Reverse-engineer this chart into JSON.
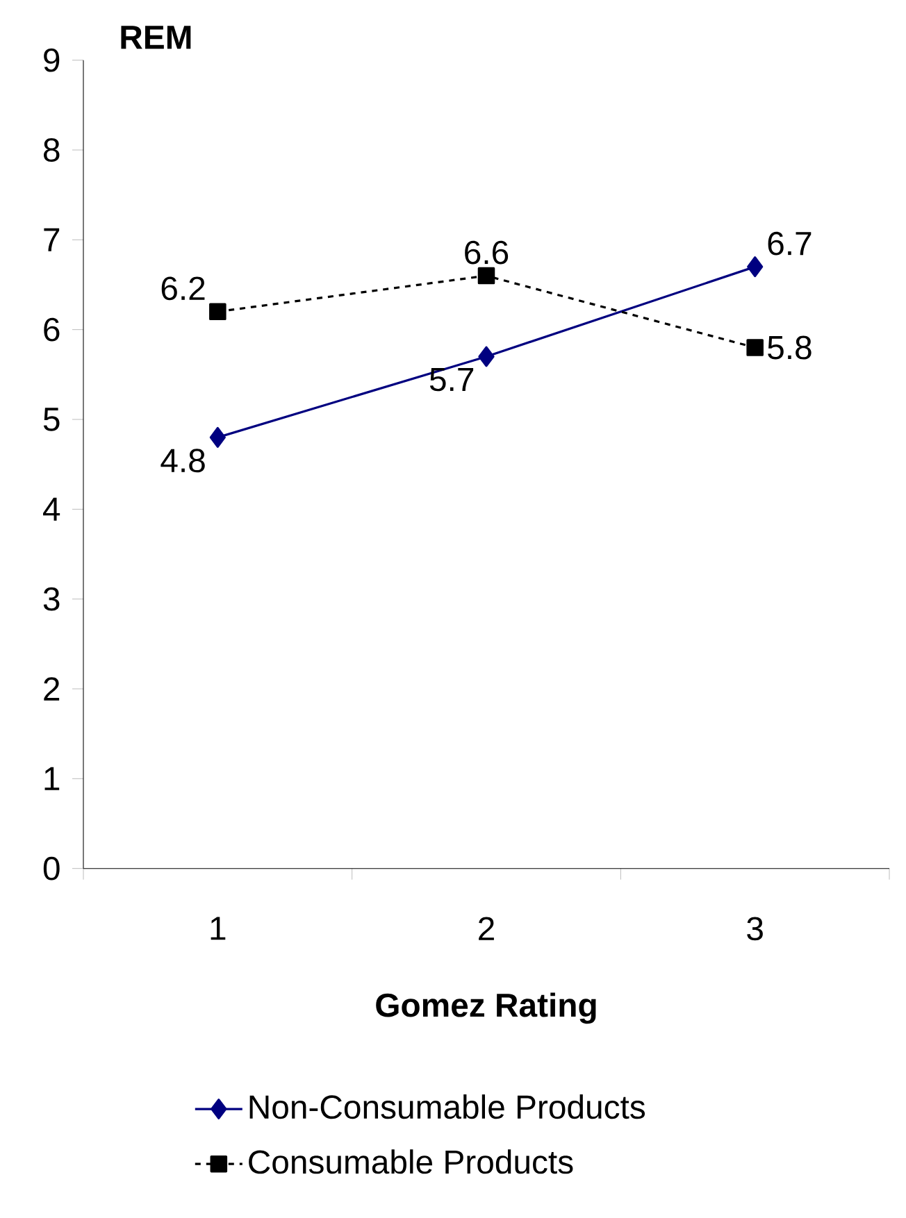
{
  "chart_data": {
    "type": "line",
    "xlabel": "Gomez Rating",
    "ylabel": "REM",
    "categories": [
      "1",
      "2",
      "3"
    ],
    "series": [
      {
        "name": "Non-Consumable Products",
        "color": "#000080",
        "values": [
          4.8,
          5.7,
          6.7
        ],
        "marker": "diamond",
        "line_style": "solid"
      },
      {
        "name": "Consumable Products",
        "color": "#000000",
        "values": [
          6.2,
          6.6,
          5.8
        ],
        "marker": "square",
        "line_style": "dashed"
      }
    ],
    "ylim": [
      0,
      9
    ],
    "yticks": [
      0,
      1,
      2,
      3,
      4,
      5,
      6,
      7,
      8,
      9
    ],
    "data_labels": true,
    "legend": "bottom",
    "grid": false
  }
}
